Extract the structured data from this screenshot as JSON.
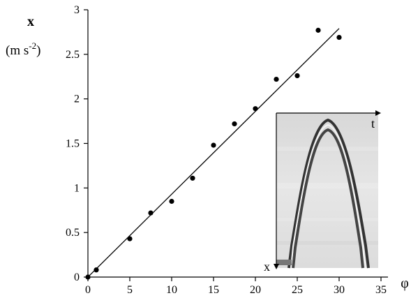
{
  "chart_data": {
    "type": "scatter",
    "title": "",
    "xlabel": "φ",
    "ylabel": "x",
    "ylabel_unit": "(m s",
    "ylabel_unit_exp": "-2",
    "ylabel_unit_close": ")",
    "xlim": [
      0,
      35
    ],
    "ylim": [
      0,
      3
    ],
    "grid": false,
    "legend": "none",
    "x_ticks": [
      "0",
      "5",
      "10",
      "15",
      "20",
      "25",
      "30",
      "35"
    ],
    "y_ticks": [
      "0",
      "0.5",
      "1",
      "1.5",
      "2",
      "2.5",
      "3"
    ],
    "series": [
      {
        "x": [
          0,
          1,
          5,
          7.5,
          10,
          12.5,
          15,
          17.5,
          20,
          22.5,
          25,
          27.5,
          30
        ],
        "y": [
          0.0,
          0.08,
          0.43,
          0.72,
          0.85,
          1.11,
          1.48,
          1.72,
          1.89,
          2.22,
          2.26,
          2.77,
          2.69
        ]
      }
    ],
    "fit_line": {
      "x": [
        0,
        30
      ],
      "y": [
        0,
        2.79
      ]
    },
    "inset": {
      "axis_labels": {
        "t": "t",
        "x": "x"
      }
    }
  }
}
